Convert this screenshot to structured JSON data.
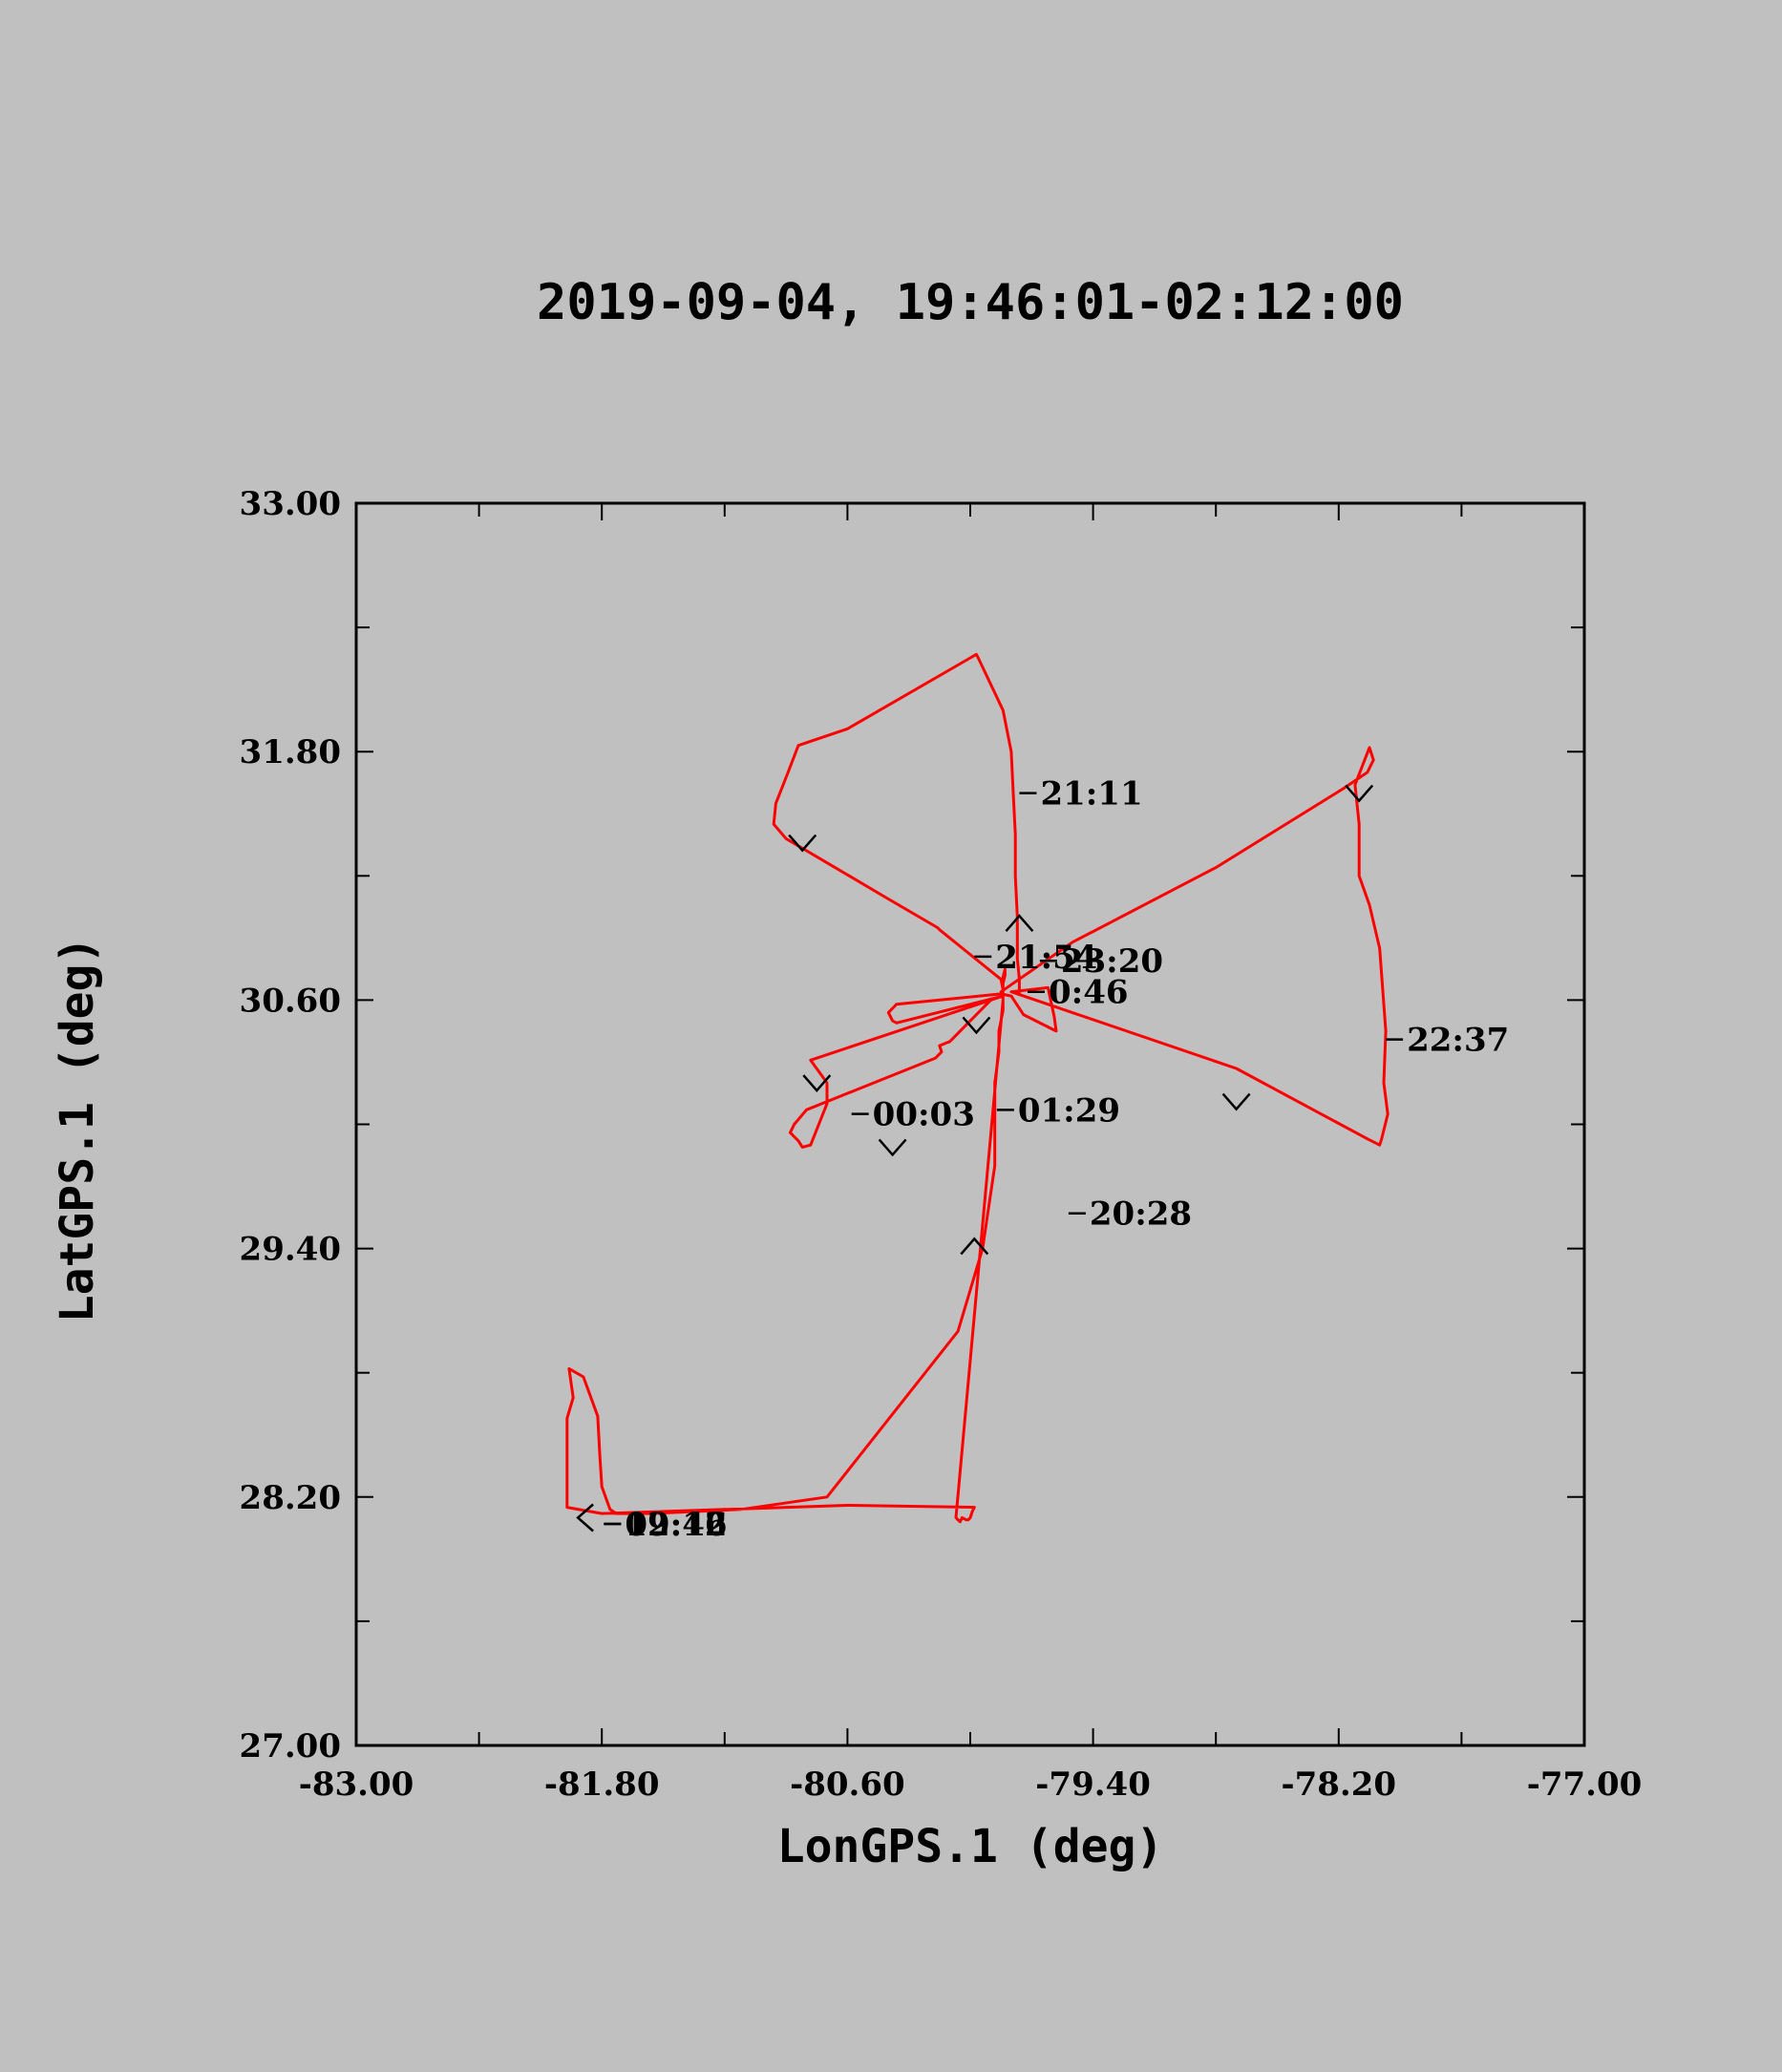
{
  "chart_data": {
    "type": "line",
    "title": "2019-09-04, 19:46:01-02:12:00",
    "xlabel": "LonGPS.1 (deg)",
    "ylabel": "LatGPS.1 (deg)",
    "xlim": [
      -83.0,
      -77.0
    ],
    "ylim": [
      27.0,
      33.0
    ],
    "x_ticks": [
      "-83.00",
      "-81.80",
      "-80.60",
      "-79.40",
      "-78.20",
      "-77.00"
    ],
    "y_ticks": [
      "27.00",
      "28.20",
      "29.40",
      "30.60",
      "31.80",
      "33.00"
    ],
    "grid": false,
    "line_color": "#ff0000",
    "series": [
      {
        "x": [
          -79.76,
          -79.76,
          -79.77,
          -79.77,
          -79.78,
          -79.78,
          -79.79,
          -79.8,
          -79.82,
          -79.84,
          -79.96,
          -79.97,
          -80.6,
          -80.84,
          -80.89,
          -80.95,
          -80.96,
          -80.9,
          -80.42,
          -80.16,
          -80.15,
          -79.85,
          -79.84,
          -79.84,
          -79.83,
          -79.83,
          -79.84,
          -79.84,
          -79.84,
          -79.84,
          -79.84,
          -79.84,
          -79.85,
          -79.5,
          -78.8,
          -78.18,
          -78.06,
          -78.03,
          -78.05,
          -78.12,
          -78.1,
          -78.1,
          -78.05,
          -78.0,
          -77.97,
          -77.98,
          -77.96,
          -77.99,
          -78.0,
          -78.06,
          -78.7,
          -79.8,
          -79.62,
          -79.59,
          -79.58,
          -79.74,
          -79.8,
          -79.85,
          -80.36,
          -80.38,
          -80.4,
          -80.38,
          -80.36,
          -79.84,
          -79.9,
          -80.0,
          -80.1,
          -80.15,
          -80.14,
          -80.17,
          -80.8,
          -80.86,
          -80.88,
          -80.84,
          -80.82,
          -80.78,
          -80.74,
          -80.7,
          -80.7,
          -80.78,
          -79.84,
          -79.84,
          -79.86,
          -79.86,
          -79.88,
          -79.88,
          -79.88,
          -79.94,
          -80.06,
          -80.7,
          -81.12,
          -81.56,
          -81.73,
          -81.76,
          -81.8,
          -81.81,
          -81.82,
          -81.89,
          -81.96,
          -81.94,
          -81.97,
          -81.97,
          -81.8,
          -80.6,
          -79.98,
          -79.98,
          -79.99,
          -80.0,
          -80.01,
          -80.02,
          -80.04,
          -80.05,
          -80.06,
          -80.07,
          -79.84
        ],
        "y": [
          30.62,
          30.7,
          30.8,
          31.0,
          31.2,
          31.4,
          31.6,
          31.8,
          31.9,
          32.0,
          32.25,
          32.27,
          31.91,
          31.83,
          31.7,
          31.55,
          31.45,
          31.38,
          31.1,
          30.95,
          30.94,
          30.7,
          30.65,
          30.68,
          30.72,
          30.75,
          30.71,
          30.68,
          30.68,
          30.66,
          30.64,
          30.64,
          30.64,
          30.88,
          31.24,
          31.62,
          31.7,
          31.76,
          31.82,
          31.64,
          31.45,
          31.2,
          31.06,
          30.85,
          30.45,
          30.2,
          30.05,
          29.93,
          29.9,
          29.93,
          30.27,
          30.64,
          30.66,
          30.52,
          30.45,
          30.53,
          30.62,
          30.63,
          30.58,
          30.56,
          30.54,
          30.5,
          30.49,
          30.62,
          30.6,
          30.5,
          30.4,
          30.38,
          30.35,
          30.32,
          30.07,
          30.0,
          29.96,
          29.92,
          29.89,
          29.9,
          30.0,
          30.1,
          30.2,
          30.31,
          30.62,
          30.55,
          30.45,
          30.35,
          30.2,
          30.0,
          29.8,
          29.4,
          29.0,
          28.2,
          28.14,
          28.12,
          28.12,
          28.14,
          28.25,
          28.4,
          28.59,
          28.78,
          28.82,
          28.68,
          28.58,
          28.15,
          28.12,
          28.16,
          28.15,
          28.15,
          28.13,
          28.1,
          28.09,
          28.09,
          28.1,
          28.08,
          28.09,
          28.1,
          30.6
        ]
      }
    ],
    "time_labels": [
      {
        "text": "21:11",
        "x": -79.76,
        "y": 31.6
      },
      {
        "text": "21:54",
        "x": -79.98,
        "y": 30.81
      },
      {
        "text": "23:20",
        "x": -79.66,
        "y": 30.79
      },
      {
        "text": "0:46",
        "x": -79.72,
        "y": 30.64
      },
      {
        "text": "22:37",
        "x": -77.97,
        "y": 30.41
      },
      {
        "text": "00:03",
        "x": -80.58,
        "y": 30.05
      },
      {
        "text": "01:29",
        "x": -79.87,
        "y": 30.07
      },
      {
        "text": "20:28",
        "x": -79.52,
        "y": 29.57
      },
      {
        "text": "02:12",
        "x": -81.79,
        "y": 28.07
      },
      {
        "text": "19:46",
        "x": -81.79,
        "y": 28.07
      }
    ],
    "direction_arrows": [
      {
        "x": -79.76,
        "y": 30.97,
        "dir": "up"
      },
      {
        "x": -79.98,
        "y": 29.41,
        "dir": "up"
      },
      {
        "x": -80.82,
        "y": 31.36,
        "dir": "down"
      },
      {
        "x": -78.1,
        "y": 31.6,
        "dir": "down"
      },
      {
        "x": -78.7,
        "y": 30.11,
        "dir": "down"
      },
      {
        "x": -80.75,
        "y": 30.2,
        "dir": "down"
      },
      {
        "x": -80.38,
        "y": 29.89,
        "dir": "down"
      },
      {
        "x": -79.97,
        "y": 30.48,
        "dir": "down"
      },
      {
        "x": -81.88,
        "y": 28.1,
        "dir": "left"
      }
    ]
  }
}
